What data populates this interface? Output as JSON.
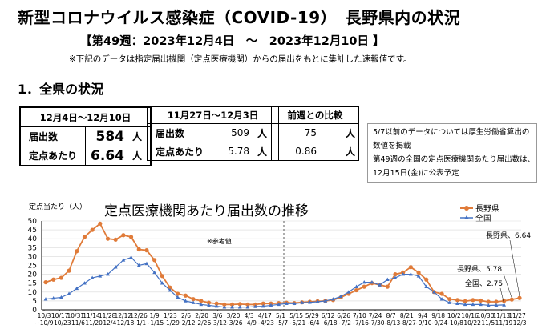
{
  "page_title": "新型コロナウイルス感染症（COVID-19）　長野県内の状況",
  "week_header": "【第49週：2023年12月4日　～　2023年12月10日 】",
  "note": "※下記のデータは指定届出機関（定点医療機関）からの届出をもとに集計した速報値です。",
  "section_title": "1．全県の状況",
  "current": {
    "header": "12月4日～12月10日",
    "rows": [
      {
        "label": "届出数",
        "value": "584",
        "unit": "人"
      },
      {
        "label": "定点あたり",
        "value": "6.64",
        "unit": "人"
      }
    ]
  },
  "previous": {
    "header": "11月27日～12月3日",
    "rows": [
      {
        "label": "届出数",
        "value": "509",
        "unit": "人"
      },
      {
        "label": "定点あたり",
        "value": "5.78",
        "unit": "人"
      }
    ]
  },
  "comparison": {
    "header": "前週との比較",
    "rows": [
      {
        "value": "75",
        "unit": "人"
      },
      {
        "value": "0.86",
        "unit": "人"
      }
    ]
  },
  "side_note": [
    "5/7以前のデータについては厚生労働省算出の",
    "数値を掲載",
    "第49週の全国の定点医療機関あたり届出数は、",
    "12月15日(金)に公表予定"
  ],
  "colors": {
    "nagano": "#E07B39",
    "national": "#4472C4"
  },
  "chart_data": {
    "type": "line",
    "title": "定点医療機関あたり届出数の推移",
    "ylabel": "定点当たり（人）",
    "ylim": [
      0,
      50
    ],
    "yticks": [
      0,
      5,
      10,
      15,
      20,
      25,
      30,
      35,
      40,
      45,
      50
    ],
    "reference_note": "※参考値",
    "x_labels_top": [
      "10/3",
      "10/17",
      "10/31",
      "11/14",
      "11/28",
      "12/12",
      "12/26",
      "1/9",
      "1/23",
      "2/6",
      "2/20",
      "3/6",
      "3/20",
      "4/3",
      "4/17",
      "5/1",
      "5/15",
      "5/29",
      "6/12",
      "6/26",
      "7/10",
      "7/24",
      "8/7",
      "8/21",
      "9/4",
      "9/18",
      "10/2",
      "10/16",
      "10/30",
      "11/13",
      "11/27"
    ],
    "x_labels_bottom": [
      "~10/9",
      "~10/23",
      "~11/6",
      "~11/20",
      "~12/4",
      "~12/18",
      "~1/1",
      "~1/15",
      "~1/29",
      "~2/12",
      "~2/26",
      "~3/12",
      "~3/26",
      "~4/9",
      "~4/23",
      "~5/7",
      "~5/21",
      "~6/4",
      "~6/18",
      "~7/2",
      "~7/16",
      "~7/30",
      "~8/13",
      "~8/27",
      "~9/10",
      "~9/24",
      "~10/8",
      "~10/22",
      "~11/5",
      "~11/19",
      "~12/3"
    ],
    "series": [
      {
        "name": "長野県",
        "color": "#E07B39",
        "values": [
          15.5,
          17,
          18,
          22,
          33,
          41,
          45,
          48.5,
          40,
          39.5,
          42,
          41,
          34,
          33.5,
          28,
          19,
          12.5,
          9,
          8,
          6,
          5,
          4,
          3.5,
          3,
          3,
          3.2,
          3,
          3,
          3.5,
          3.5,
          3.8,
          4,
          3.8,
          4.2,
          4.5,
          4.8,
          5,
          5.5,
          7,
          9,
          11,
          13,
          15,
          14,
          13,
          20,
          21,
          24,
          21,
          17,
          10,
          9,
          6,
          5.5,
          4.8,
          5.5,
          5.2,
          4.5,
          4.5,
          5,
          5.78,
          6.64
        ]
      },
      {
        "name": "全国",
        "color": "#4472C4",
        "values": [
          6,
          6.5,
          7,
          9,
          12,
          15,
          18,
          19,
          20,
          24,
          28,
          29.5,
          25,
          26,
          21,
          15,
          11,
          7,
          5,
          4,
          3,
          2.5,
          2,
          1.5,
          1.5,
          1.5,
          1.5,
          1.8,
          2,
          2.5,
          3,
          3.5,
          3.5,
          4,
          4.2,
          4.5,
          5,
          6,
          7.5,
          10,
          13,
          15.5,
          15.5,
          14,
          17,
          18,
          20,
          20,
          19,
          13,
          10,
          6,
          4,
          3.5,
          3,
          3,
          3,
          2.5,
          2.6,
          2.75
        ]
      }
    ],
    "annotations": [
      {
        "text": "長野県、6.64",
        "series": "長野県"
      },
      {
        "text": "長野県、5.78",
        "series": "長野県"
      },
      {
        "text": "全国、2.75",
        "series": "全国"
      }
    ]
  }
}
